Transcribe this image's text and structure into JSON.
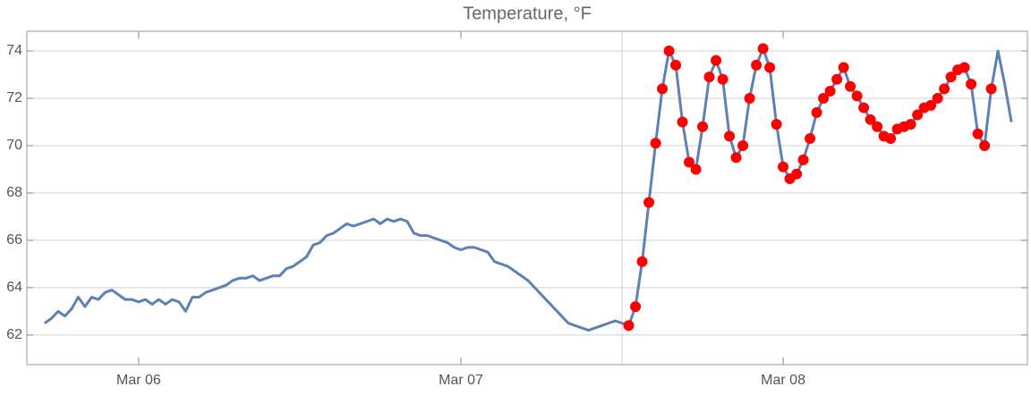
{
  "chart_data": {
    "type": "line",
    "title": "Temperature, °F",
    "xlim": [
      5.653,
      8.758
    ],
    "ylim": [
      60.75,
      74.83
    ],
    "xticks": [
      {
        "value": 6,
        "label": "Mar 06"
      },
      {
        "value": 7,
        "label": "Mar 07"
      },
      {
        "value": 8,
        "label": "Mar 08"
      }
    ],
    "yticks": [
      62,
      64,
      66,
      68,
      70,
      72,
      74
    ],
    "grid": true,
    "xgridlines": [
      7.5
    ],
    "series": [
      {
        "color": "#5e81b5",
        "mode": "line",
        "x": [
          5.7083,
          5.7292,
          5.75,
          5.7708,
          5.7917,
          5.8125,
          5.8333,
          5.8542,
          5.875,
          5.8958,
          5.9167,
          5.9375,
          5.9583,
          5.9792,
          6,
          6.0208,
          6.0417,
          6.0625,
          6.0833,
          6.1042,
          6.125,
          6.1458,
          6.1667,
          6.1875,
          6.2083,
          6.2292,
          6.25,
          6.2708,
          6.2917,
          6.3125,
          6.3333,
          6.3542,
          6.375,
          6.3958,
          6.4167,
          6.4375,
          6.4583,
          6.4792,
          6.5,
          6.5208,
          6.5417,
          6.5625,
          6.5833,
          6.6042,
          6.625,
          6.6458,
          6.6667,
          6.6875,
          6.7083,
          6.7292,
          6.75,
          6.7708,
          6.7917,
          6.8125,
          6.8333,
          6.8542,
          6.875,
          6.8958,
          6.9167,
          6.9375,
          6.9583,
          6.9792,
          7,
          7.0208,
          7.0417,
          7.0625,
          7.0833,
          7.1042,
          7.125,
          7.1458,
          7.1667,
          7.1875,
          7.2083,
          7.2292,
          7.25,
          7.2708,
          7.2917,
          7.3125,
          7.3333,
          7.3542,
          7.375,
          7.3958,
          7.4167,
          7.4375,
          7.4583,
          7.4792,
          7.5,
          7.5208,
          7.5417,
          7.5625,
          7.5833,
          7.6042,
          7.625,
          7.6458,
          7.6667,
          7.6875,
          7.7083,
          7.7292,
          7.75,
          7.7708,
          7.7917,
          7.8125,
          7.8333,
          7.8542,
          7.875,
          7.8958,
          7.9167,
          7.9375,
          7.9583,
          7.9792,
          8,
          8.0208,
          8.0417,
          8.0625,
          8.0833,
          8.1042,
          8.125,
          8.1458,
          8.1667,
          8.1875,
          8.2083,
          8.2292,
          8.25,
          8.2708,
          8.2917,
          8.3125,
          8.3333,
          8.3542,
          8.375,
          8.3958,
          8.4167,
          8.4375,
          8.4583,
          8.4792,
          8.5,
          8.5208,
          8.5417,
          8.5625,
          8.5833,
          8.6042,
          8.625,
          8.6458,
          8.6667,
          8.6875,
          8.7083
        ],
        "values": [
          62.5,
          62.7,
          63.0,
          62.8,
          63.1,
          63.6,
          63.2,
          63.6,
          63.5,
          63.8,
          63.9,
          63.7,
          63.5,
          63.5,
          63.4,
          63.5,
          63.3,
          63.5,
          63.3,
          63.5,
          63.4,
          63.0,
          63.6,
          63.6,
          63.8,
          63.9,
          64.0,
          64.1,
          64.3,
          64.4,
          64.4,
          64.5,
          64.3,
          64.4,
          64.5,
          64.5,
          64.8,
          64.9,
          65.1,
          65.3,
          65.8,
          65.9,
          66.2,
          66.3,
          66.5,
          66.7,
          66.6,
          66.7,
          66.8,
          66.9,
          66.7,
          66.9,
          66.8,
          66.9,
          66.8,
          66.3,
          66.2,
          66.2,
          66.1,
          66.0,
          65.9,
          65.7,
          65.6,
          65.7,
          65.7,
          65.6,
          65.5,
          65.1,
          65.0,
          64.9,
          64.7,
          64.5,
          64.3,
          64.0,
          63.7,
          63.4,
          63.1,
          62.8,
          62.5,
          62.4,
          62.3,
          62.2,
          62.3,
          62.4,
          62.5,
          62.6,
          62.5,
          62.4,
          63.2,
          65.1,
          67.6,
          70.1,
          72.4,
          74.0,
          73.4,
          71.0,
          69.3,
          69.0,
          70.8,
          72.9,
          73.6,
          72.8,
          70.4,
          69.5,
          70.0,
          72.0,
          73.4,
          74.1,
          73.3,
          70.9,
          69.1,
          68.6,
          68.8,
          69.4,
          70.3,
          71.4,
          72.0,
          72.3,
          72.8,
          73.3,
          72.5,
          72.1,
          71.6,
          71.1,
          70.8,
          70.4,
          70.3,
          70.7,
          70.8,
          70.9,
          71.3,
          71.6,
          71.7,
          72.0,
          72.4,
          72.9,
          73.2,
          73.3,
          72.6,
          70.5,
          70.0,
          72.4,
          74.0,
          72.6,
          71.0
        ]
      },
      {
        "color": "#ff0000",
        "mode": "markers",
        "x": [
          7.5208,
          7.5417,
          7.5625,
          7.5833,
          7.6042,
          7.625,
          7.6458,
          7.6667,
          7.6875,
          7.7083,
          7.7292,
          7.75,
          7.7708,
          7.7917,
          7.8125,
          7.8333,
          7.8542,
          7.875,
          7.8958,
          7.9167,
          7.9375,
          7.9583,
          7.9792,
          8,
          8.0208,
          8.0417,
          8.0625,
          8.0833,
          8.1042,
          8.125,
          8.1458,
          8.1667,
          8.1875,
          8.2083,
          8.2292,
          8.25,
          8.2708,
          8.2917,
          8.3125,
          8.3333,
          8.3542,
          8.375,
          8.3958,
          8.4167,
          8.4375,
          8.4583,
          8.4792,
          8.5,
          8.5208,
          8.5417,
          8.5625,
          8.5833,
          8.6042,
          8.625,
          8.6458
        ],
        "values": [
          62.4,
          63.2,
          65.1,
          67.6,
          70.1,
          72.4,
          74.0,
          73.4,
          71.0,
          69.3,
          69.0,
          70.8,
          72.9,
          73.6,
          72.8,
          70.4,
          69.5,
          70.0,
          72.0,
          73.4,
          74.1,
          73.3,
          70.9,
          69.1,
          68.6,
          68.8,
          69.4,
          70.3,
          71.4,
          72.0,
          72.3,
          72.8,
          73.3,
          72.5,
          72.1,
          71.6,
          71.1,
          70.8,
          70.4,
          70.3,
          70.7,
          70.8,
          70.9,
          71.3,
          71.6,
          71.7,
          72.0,
          72.4,
          72.9,
          73.2,
          73.3,
          72.6,
          70.5,
          70.0,
          72.4
        ]
      }
    ]
  }
}
